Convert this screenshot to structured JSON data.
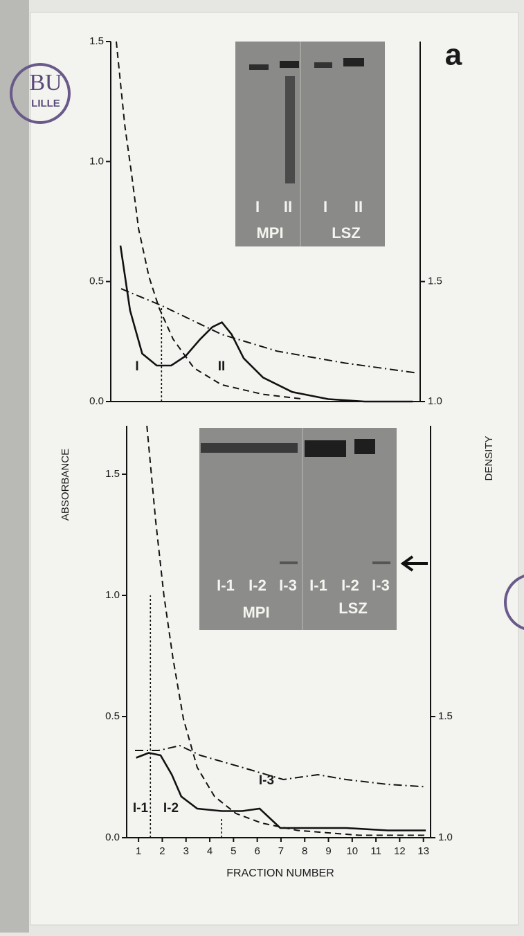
{
  "figure": {
    "label": "a",
    "y_label": "ABSORBANCE",
    "y2_label": "DENSITY",
    "x_label": "FRACTION NUMBER"
  },
  "stamp": [
    "BU",
    "LILLE"
  ],
  "chart_data": [
    {
      "type": "line",
      "xlim": [
        0.5,
        13.3
      ],
      "ylim": [
        0,
        1.5
      ],
      "yticks": [
        {
          "value": 0,
          "label": "0.0"
        },
        0.5,
        {
          "value": 1,
          "label": "1.0"
        },
        1.5
      ],
      "y2lim": [
        1.0,
        2.5
      ],
      "y2ticks": [
        {
          "value": 1,
          "label": "1.0"
        },
        1.5
      ],
      "series": [
        {
          "style": "solid",
          "color": "#111111",
          "x": [
            0.9,
            1.3,
            1.8,
            2.4,
            3.0,
            3.6,
            4.2,
            4.7,
            5.1,
            5.5,
            6.0,
            6.8,
            8,
            9.5,
            11,
            13
          ],
          "values": [
            0.65,
            0.38,
            0.2,
            0.15,
            0.15,
            0.19,
            0.26,
            0.31,
            0.33,
            0.28,
            0.18,
            0.1,
            0.04,
            0.01,
            0,
            0
          ]
        },
        {
          "style": "dashed",
          "color": "#111111",
          "x": [
            0.73,
            1.08,
            1.36,
            1.65,
            2.08,
            2.5,
            3.08,
            3.94,
            5.08,
            6.8,
            8.5
          ],
          "values": [
            1.5,
            1.15,
            0.95,
            0.72,
            0.52,
            0.39,
            0.26,
            0.14,
            0.07,
            0.03,
            0.01
          ]
        },
        {
          "style": "dashdot",
          "color": "#111111",
          "axis": "y2",
          "x": [
            0.93,
            2.6,
            5.08,
            7.38,
            10.2,
            13.1
          ],
          "values": [
            1.47,
            1.4,
            1.28,
            1.21,
            1.16,
            1.12
          ]
        }
      ],
      "vlines": [
        2.6
      ],
      "annotations": [
        "I",
        "II"
      ],
      "inset": {
        "lanes": [
          "I",
          "II",
          "I",
          "II"
        ],
        "groups": [
          "MPI",
          "LSZ"
        ]
      }
    },
    {
      "type": "line",
      "xlim": [
        0.5,
        13.3
      ],
      "xticks": [
        1,
        2,
        3,
        4,
        5,
        6,
        7,
        8,
        9,
        10,
        11,
        12,
        13
      ],
      "ylim": [
        0,
        1.7
      ],
      "yticks": [
        {
          "value": 0,
          "label": "0.0"
        },
        0.5,
        {
          "value": 1,
          "label": "1.0"
        },
        1.5
      ],
      "y2lim": [
        1.0,
        2.7
      ],
      "y2ticks": [
        {
          "value": 1,
          "label": "1.0"
        },
        1.5
      ],
      "series": [
        {
          "style": "solid",
          "color": "#111111",
          "x": [
            0.9,
            1.43,
            1.93,
            2.4,
            2.8,
            3.47,
            4.5,
            5.37,
            6.1,
            6.97,
            8,
            9.74,
            11.5,
            13.1
          ],
          "values": [
            0.33,
            0.35,
            0.34,
            0.26,
            0.17,
            0.12,
            0.11,
            0.11,
            0.12,
            0.04,
            0.04,
            0.04,
            0.03,
            0.03
          ]
        },
        {
          "style": "dashed",
          "color": "#111111",
          "x": [
            1.35,
            1.72,
            2.07,
            2.45,
            2.89,
            3.47,
            4.2,
            5.1,
            6.2,
            7.7,
            10.3,
            13.1
          ],
          "values": [
            1.7,
            1.31,
            1.0,
            0.74,
            0.49,
            0.29,
            0.17,
            0.1,
            0.06,
            0.03,
            0.01,
            0.01
          ]
        },
        {
          "style": "dashdot",
          "color": "#111111",
          "axis": "y2",
          "x": [
            0.85,
            1.85,
            2.74,
            3.6,
            5.37,
            7.1,
            8.55,
            9.74,
            11.5,
            13.1
          ],
          "values": [
            1.36,
            1.36,
            1.38,
            1.34,
            1.29,
            1.24,
            1.26,
            1.24,
            1.22,
            1.21
          ]
        }
      ],
      "vlines": [
        1.5,
        4.5
      ],
      "annotations": [
        "I-1",
        "I-2",
        "I-3"
      ],
      "inset": {
        "lanes": [
          "I-1",
          "I-2",
          "I-3",
          "I-1",
          "I-2",
          "I-3"
        ],
        "groups": [
          "MPI",
          "LSZ"
        ]
      }
    }
  ]
}
